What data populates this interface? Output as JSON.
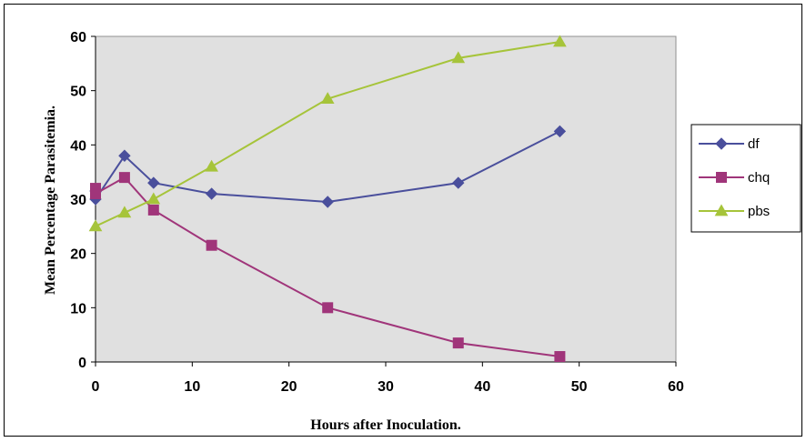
{
  "chart_data": {
    "type": "line",
    "title": "",
    "xlabel": "Hours after Inoculation.",
    "ylabel": "Mean Percentage Parasitemia.",
    "xlim": [
      0,
      60
    ],
    "ylim": [
      0,
      60
    ],
    "xticks": [
      0,
      10,
      20,
      30,
      40,
      50,
      60
    ],
    "yticks": [
      0,
      10,
      20,
      30,
      40,
      50,
      60
    ],
    "grid": false,
    "legend_position": "right",
    "series": [
      {
        "name": "df",
        "color": "#4a4f9c",
        "marker": "diamond",
        "x": [
          0,
          0,
          3,
          6,
          12,
          24,
          37.5,
          48
        ],
        "y": [
          31.5,
          30,
          38,
          33,
          31,
          29.5,
          33,
          42.5
        ]
      },
      {
        "name": "chq",
        "color": "#a0357a",
        "marker": "square",
        "x": [
          0,
          0,
          3,
          6,
          12,
          24,
          37.5,
          48
        ],
        "y": [
          32,
          31,
          34,
          28,
          21.5,
          10,
          3.5,
          1
        ]
      },
      {
        "name": "pbs",
        "color": "#a6c43a",
        "marker": "triangle",
        "x": [
          0,
          3,
          6,
          12,
          24,
          37.5,
          48
        ],
        "y": [
          25,
          27.5,
          30,
          36,
          48.5,
          56,
          59
        ]
      }
    ]
  }
}
